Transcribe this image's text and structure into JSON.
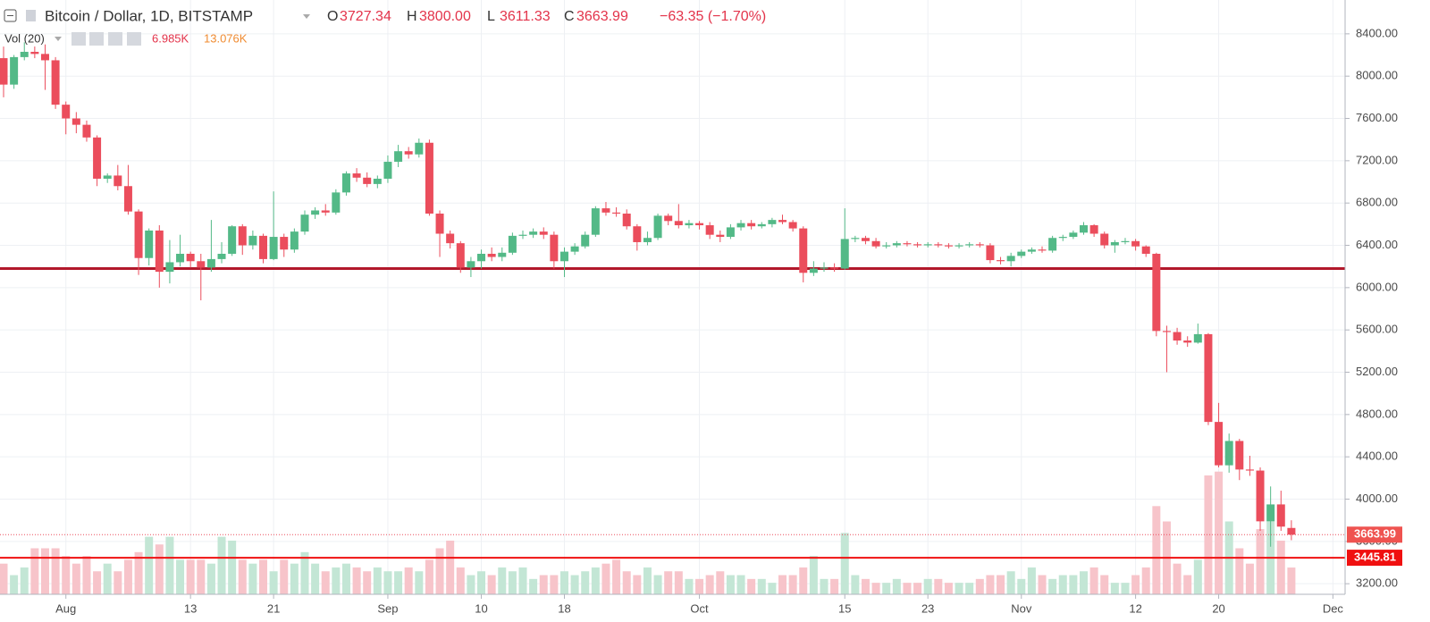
{
  "chart_data": {
    "type": "candlestick",
    "header": {
      "title": "Bitcoin / Dollar, 1D, BITSTAMP",
      "ohlc": [
        {
          "key": "O",
          "value": "3727.34"
        },
        {
          "key": "H",
          "value": "3800.00"
        },
        {
          "key": "L",
          "value": "3611.33"
        },
        {
          "key": "C",
          "value": "3663.99"
        }
      ],
      "change": "−63.35 (−1.70%)",
      "volume_label": "Vol (20)",
      "volume_value": "6.985K",
      "volume_ma": "13.076K"
    },
    "x": [
      "07-26",
      "07-27",
      "07-28",
      "07-29",
      "07-30",
      "07-31",
      "08-01",
      "08-02",
      "08-03",
      "08-04",
      "08-05",
      "08-06",
      "08-07",
      "08-08",
      "08-09",
      "08-10",
      "08-11",
      "08-12",
      "08-13",
      "08-14",
      "08-15",
      "08-16",
      "08-17",
      "08-18",
      "08-19",
      "08-20",
      "08-21",
      "08-22",
      "08-23",
      "08-24",
      "08-25",
      "08-26",
      "08-27",
      "08-28",
      "08-29",
      "08-30",
      "08-31",
      "09-01",
      "09-02",
      "09-03",
      "09-04",
      "09-05",
      "09-06",
      "09-07",
      "09-08",
      "09-09",
      "09-10",
      "09-11",
      "09-12",
      "09-13",
      "09-14",
      "09-15",
      "09-16",
      "09-17",
      "09-18",
      "09-19",
      "09-20",
      "09-21",
      "09-22",
      "09-23",
      "09-24",
      "09-25",
      "09-26",
      "09-27",
      "09-28",
      "09-29",
      "09-30",
      "10-01",
      "10-02",
      "10-03",
      "10-04",
      "10-05",
      "10-06",
      "10-07",
      "10-08",
      "10-09",
      "10-10",
      "10-11",
      "10-12",
      "10-13",
      "10-14",
      "10-15",
      "10-16",
      "10-17",
      "10-18",
      "10-19",
      "10-20",
      "10-21",
      "10-22",
      "10-23",
      "10-24",
      "10-25",
      "10-26",
      "10-27",
      "10-28",
      "10-29",
      "10-30",
      "10-31",
      "11-01",
      "11-02",
      "11-03",
      "11-04",
      "11-05",
      "11-06",
      "11-07",
      "11-08",
      "11-09",
      "11-10",
      "11-11",
      "11-12",
      "11-13",
      "11-14",
      "11-15",
      "11-16",
      "11-17",
      "11-18",
      "11-19",
      "11-20",
      "11-21",
      "11-22",
      "11-23",
      "11-24",
      "11-25",
      "11-26",
      "11-27"
    ],
    "open": [
      8170,
      7920,
      8180,
      8230,
      8210,
      8150,
      7730,
      7600,
      7540,
      7420,
      7030,
      7060,
      6960,
      6720,
      6280,
      6540,
      6150,
      6240,
      6320,
      6250,
      6190,
      6270,
      6320,
      6580,
      6400,
      6490,
      6270,
      6480,
      6360,
      6530,
      6690,
      6730,
      6710,
      6900,
      7080,
      7040,
      6980,
      7030,
      7190,
      7290,
      7260,
      7370,
      6700,
      6510,
      6420,
      6190,
      6250,
      6320,
      6290,
      6330,
      6490,
      6500,
      6530,
      6500,
      6250,
      6340,
      6390,
      6500,
      6750,
      6710,
      6700,
      6580,
      6430,
      6470,
      6680,
      6630,
      6590,
      6610,
      6590,
      6500,
      6480,
      6570,
      6610,
      6580,
      6600,
      6640,
      6620,
      6560,
      6140,
      6180,
      6190,
      6180,
      6460,
      6470,
      6440,
      6390,
      6400,
      6420,
      6410,
      6400,
      6410,
      6400,
      6390,
      6400,
      6410,
      6400,
      6260,
      6250,
      6300,
      6340,
      6360,
      6350,
      6470,
      6480,
      6520,
      6590,
      6510,
      6400,
      6430,
      6440,
      6390,
      6320,
      5590,
      5580,
      5500,
      5480,
      5560,
      4730,
      4320,
      4550,
      4280,
      4270,
      3790,
      3950,
      3727.34
    ],
    "high": [
      8280,
      8200,
      8320,
      8280,
      8300,
      8180,
      7760,
      7660,
      7580,
      7440,
      7080,
      7160,
      7160,
      6740,
      6560,
      6590,
      6450,
      6500,
      6340,
      6320,
      6640,
      6430,
      6590,
      6600,
      6540,
      6510,
      6910,
      6510,
      6560,
      6730,
      6760,
      6790,
      6930,
      7100,
      7130,
      7090,
      7060,
      7250,
      7350,
      7330,
      7410,
      7400,
      6730,
      6540,
      6440,
      6290,
      6360,
      6380,
      6380,
      6520,
      6540,
      6560,
      6570,
      6530,
      6380,
      6420,
      6530,
      6770,
      6810,
      6760,
      6740,
      6600,
      6530,
      6700,
      6700,
      6790,
      6640,
      6630,
      6620,
      6540,
      6600,
      6640,
      6640,
      6620,
      6660,
      6690,
      6640,
      6580,
      6250,
      6240,
      6230,
      6750,
      6490,
      6490,
      6470,
      6430,
      6440,
      6440,
      6430,
      6430,
      6430,
      6420,
      6420,
      6430,
      6430,
      6420,
      6290,
      6330,
      6360,
      6380,
      6390,
      6490,
      6500,
      6540,
      6620,
      6600,
      6530,
      6450,
      6470,
      6460,
      6400,
      6330,
      5640,
      5620,
      5540,
      5660,
      5570,
      4910,
      4620,
      4570,
      4410,
      4300,
      4120,
      4080,
      3800
    ],
    "low": [
      7800,
      7880,
      8150,
      8170,
      7870,
      7690,
      7450,
      7460,
      7380,
      6960,
      6990,
      6920,
      6690,
      6120,
      6210,
      6000,
      6040,
      6200,
      6190,
      5880,
      6150,
      6230,
      6300,
      6310,
      6360,
      6230,
      6260,
      6290,
      6330,
      6500,
      6650,
      6680,
      6690,
      6870,
      7000,
      6950,
      6940,
      6990,
      7140,
      7220,
      7230,
      6680,
      6290,
      6370,
      6140,
      6100,
      6180,
      6250,
      6250,
      6310,
      6460,
      6470,
      6460,
      6180,
      6100,
      6310,
      6370,
      6480,
      6680,
      6670,
      6550,
      6350,
      6400,
      6450,
      6590,
      6560,
      6560,
      6550,
      6460,
      6430,
      6460,
      6540,
      6550,
      6560,
      6570,
      6600,
      6530,
      6050,
      6110,
      6150,
      6150,
      6170,
      6430,
      6410,
      6370,
      6370,
      6380,
      6390,
      6380,
      6380,
      6380,
      6370,
      6370,
      6380,
      6380,
      6230,
      6220,
      6200,
      6280,
      6320,
      6330,
      6330,
      6440,
      6460,
      6500,
      6480,
      6370,
      6330,
      6410,
      6350,
      6290,
      5540,
      5200,
      5460,
      5440,
      5470,
      4700,
      4300,
      4250,
      4180,
      4220,
      3700,
      3550,
      3700,
      3611.33
    ],
    "close": [
      7920,
      8180,
      8230,
      8210,
      8150,
      7730,
      7600,
      7540,
      7420,
      7030,
      7060,
      6960,
      6720,
      6280,
      6540,
      6150,
      6240,
      6320,
      6250,
      6190,
      6270,
      6320,
      6580,
      6400,
      6490,
      6270,
      6480,
      6360,
      6530,
      6690,
      6730,
      6710,
      6900,
      7080,
      7040,
      6980,
      7030,
      7190,
      7290,
      7260,
      7370,
      6700,
      6510,
      6420,
      6190,
      6250,
      6320,
      6290,
      6330,
      6490,
      6500,
      6530,
      6500,
      6250,
      6340,
      6390,
      6500,
      6750,
      6710,
      6700,
      6580,
      6430,
      6470,
      6680,
      6630,
      6590,
      6610,
      6590,
      6500,
      6480,
      6570,
      6610,
      6580,
      6600,
      6640,
      6620,
      6560,
      6140,
      6180,
      6190,
      6180,
      6460,
      6470,
      6440,
      6390,
      6400,
      6420,
      6410,
      6400,
      6410,
      6400,
      6390,
      6400,
      6410,
      6400,
      6260,
      6250,
      6300,
      6340,
      6360,
      6350,
      6470,
      6480,
      6520,
      6590,
      6510,
      6400,
      6430,
      6440,
      6390,
      6320,
      5590,
      5580,
      5500,
      5480,
      5560,
      4730,
      4320,
      4550,
      4280,
      4270,
      3790,
      3950,
      3740,
      3663.99
    ],
    "volume": [
      8000,
      5000,
      7000,
      12000,
      12000,
      12000,
      10000,
      8000,
      10000,
      6000,
      8000,
      6000,
      9000,
      11000,
      15000,
      13000,
      15000,
      9000,
      9000,
      9000,
      8000,
      15000,
      14000,
      9000,
      8000,
      9000,
      6000,
      9000,
      8000,
      11000,
      8000,
      6000,
      7000,
      8000,
      7000,
      6000,
      7000,
      6000,
      6000,
      7000,
      6000,
      9000,
      12000,
      14000,
      7000,
      5000,
      6000,
      5000,
      7000,
      6000,
      7000,
      4000,
      5000,
      5000,
      6000,
      5000,
      6000,
      7000,
      8000,
      9000,
      6000,
      5000,
      7000,
      5000,
      6000,
      6000,
      4000,
      4000,
      5000,
      6000,
      5000,
      5000,
      4000,
      4000,
      3000,
      5000,
      5000,
      7000,
      10000,
      4000,
      4000,
      16000,
      5000,
      4000,
      3000,
      3000,
      4000,
      3000,
      3000,
      4000,
      4000,
      3000,
      3000,
      3000,
      4000,
      5000,
      5000,
      6000,
      4000,
      7000,
      5000,
      4000,
      5000,
      5000,
      6000,
      7000,
      5000,
      3000,
      3000,
      5000,
      7000,
      23000,
      19000,
      8000,
      5000,
      9000,
      31000,
      32000,
      19000,
      12000,
      8000,
      17000,
      19000,
      14000,
      6985
    ],
    "up_color": "#53b987",
    "down_color": "#eb4d5c",
    "volume_up_color": "#c3e6d5",
    "volume_down_color": "#f7c4ca",
    "xlim": [
      "07-26",
      "12-02"
    ],
    "xticks": [
      {
        "value": "08-01",
        "label": "Aug"
      },
      {
        "value": "08-13",
        "label": "13"
      },
      {
        "value": "08-21",
        "label": "21"
      },
      {
        "value": "09-01",
        "label": "Sep"
      },
      {
        "value": "09-10",
        "label": "10"
      },
      {
        "value": "09-18",
        "label": "18"
      },
      {
        "value": "10-01",
        "label": "Oct"
      },
      {
        "value": "10-15",
        "label": "15"
      },
      {
        "value": "10-23",
        "label": "23"
      },
      {
        "value": "11-01",
        "label": "Nov"
      },
      {
        "value": "11-12",
        "label": "12"
      },
      {
        "value": "11-20",
        "label": "20"
      },
      {
        "value": "12-01",
        "label": "Dec"
      }
    ],
    "ylim": [
      3100,
      8720
    ],
    "yticks": [
      {
        "value": 3200,
        "label": "3200.00"
      },
      {
        "value": 3600,
        "label": "3600.00"
      },
      {
        "value": 4000,
        "label": "4000.00"
      },
      {
        "value": 4400,
        "label": "4400.00"
      },
      {
        "value": 4800,
        "label": "4800.00"
      },
      {
        "value": 5200,
        "label": "5200.00"
      },
      {
        "value": 5600,
        "label": "5600.00"
      },
      {
        "value": 6000,
        "label": "6000.00"
      },
      {
        "value": 6400,
        "label": "6400.00"
      },
      {
        "value": 6800,
        "label": "6800.00"
      },
      {
        "value": 7200,
        "label": "7200.00"
      },
      {
        "value": 7600,
        "label": "7600.00"
      },
      {
        "value": 8000,
        "label": "8000.00"
      },
      {
        "value": 8400,
        "label": "8400.00"
      }
    ],
    "volume_ylim": [
      0,
      155000
    ],
    "grid": true,
    "hlines": [
      {
        "value": 6180,
        "color": "#b2182b"
      },
      {
        "value": 3445.81,
        "label": "3445.81",
        "color": "#f01010"
      }
    ]
  }
}
